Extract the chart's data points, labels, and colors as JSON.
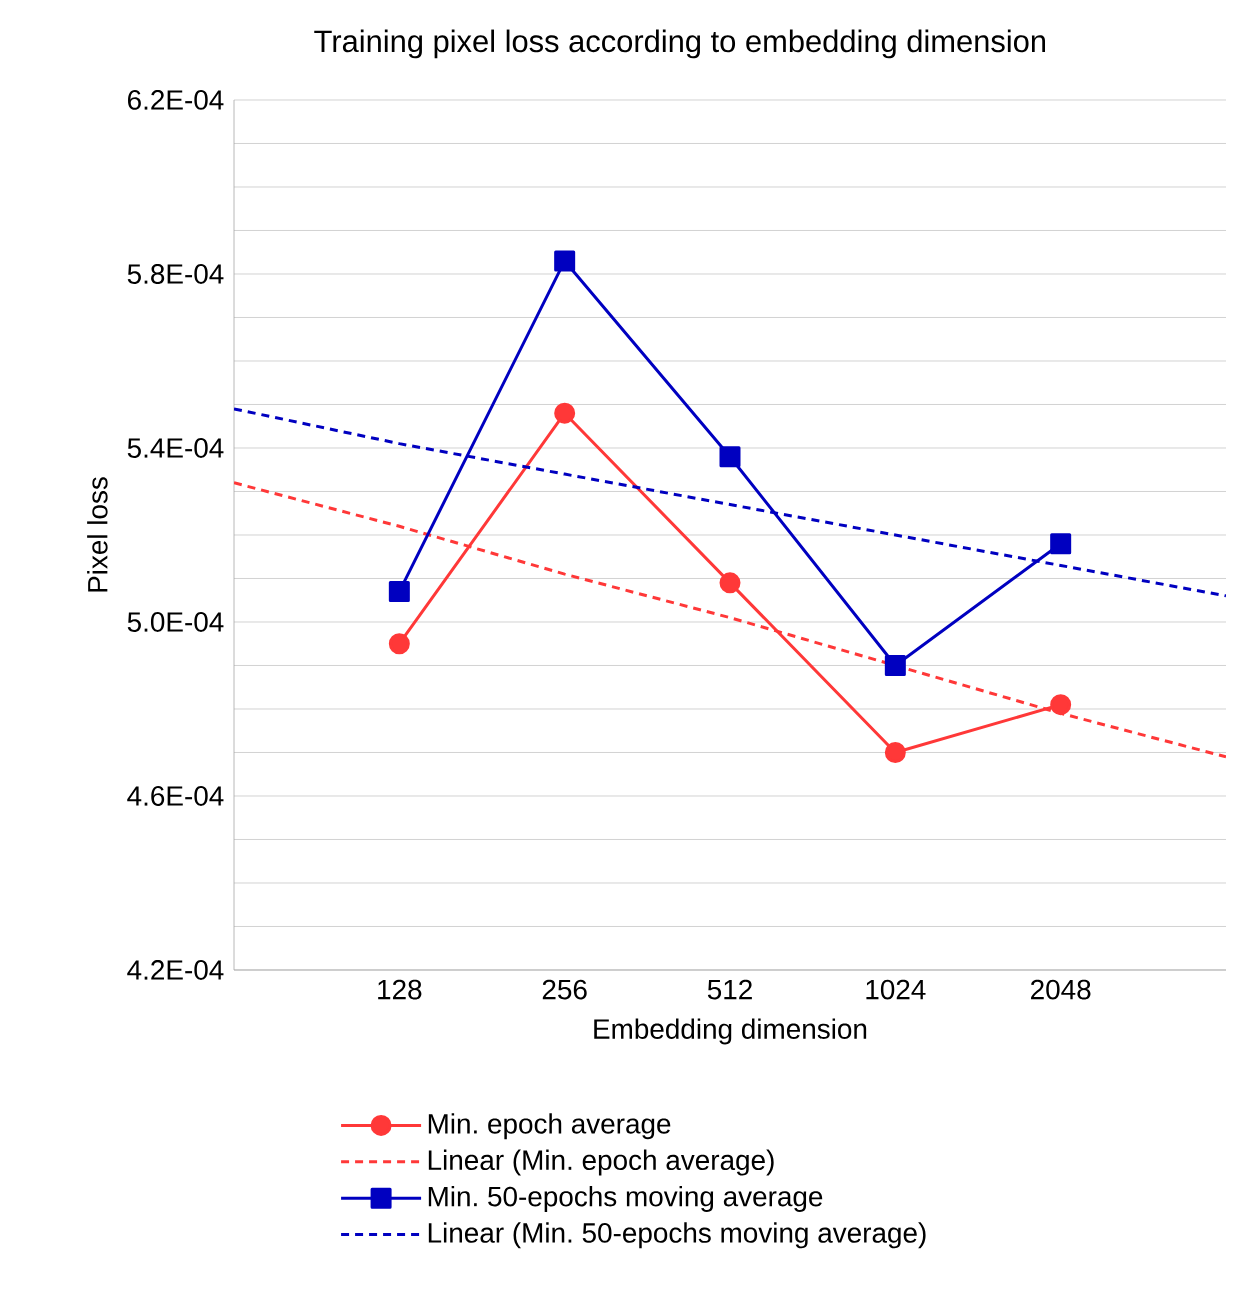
{
  "chart_data": {
    "type": "line",
    "title": "Training pixel loss according to embedding dimension",
    "xlabel": "Embedding dimension",
    "ylabel": "Pixel loss",
    "categories": [
      null,
      "128",
      "256",
      "512",
      "1024",
      "2048",
      null
    ],
    "series": [
      {
        "name": "Min. epoch average",
        "type": "line",
        "color": "#ff3838",
        "marker": "circle",
        "line_style": "solid",
        "values": [
          null,
          0.000495,
          0.000548,
          0.000509,
          0.00047,
          0.000481,
          null
        ]
      },
      {
        "name": "Linear (Min. epoch average)",
        "type": "line",
        "color": "#ff3838",
        "marker": "none",
        "line_style": "dashed",
        "values": [
          0.000532,
          0.000522,
          0.000511,
          0.000501,
          0.00049,
          0.000479,
          0.000469
        ]
      },
      {
        "name": "Min. 50-epochs moving average",
        "type": "line",
        "color": "#0000c0",
        "marker": "square",
        "line_style": "solid",
        "values": [
          null,
          0.000507,
          0.000583,
          0.000538,
          0.00049,
          0.000518,
          null
        ]
      },
      {
        "name": "Linear (Min. 50-epochs moving average)",
        "type": "line",
        "color": "#0000c0",
        "marker": "none",
        "line_style": "dashed",
        "values": [
          0.000549,
          0.000541,
          0.000534,
          0.000527,
          0.00052,
          0.000513,
          0.000506
        ]
      }
    ],
    "ylim": [
      0.00042,
      0.00062
    ],
    "yticks": [
      {
        "value": 0.00042,
        "label": "4.2E-04"
      },
      {
        "value": 0.00043,
        "label": null
      },
      {
        "value": 0.00044,
        "label": null
      },
      {
        "value": 0.00045,
        "label": null
      },
      {
        "value": 0.00046,
        "label": "4.6E-04"
      },
      {
        "value": 0.00047,
        "label": null
      },
      {
        "value": 0.00048,
        "label": null
      },
      {
        "value": 0.00049,
        "label": null
      },
      {
        "value": 0.0005,
        "label": "5.0E-04"
      },
      {
        "value": 0.00051,
        "label": null
      },
      {
        "value": 0.00052,
        "label": null
      },
      {
        "value": 0.00053,
        "label": null
      },
      {
        "value": 0.00054,
        "label": "5.4E-04"
      },
      {
        "value": 0.00055,
        "label": null
      },
      {
        "value": 0.00056,
        "label": null
      },
      {
        "value": 0.00057,
        "label": null
      },
      {
        "value": 0.00058,
        "label": "5.8E-04"
      },
      {
        "value": 0.00059,
        "label": null
      },
      {
        "value": 0.0006,
        "label": null
      },
      {
        "value": 0.00061,
        "label": null
      },
      {
        "value": 0.00062,
        "label": "6.2E-04"
      }
    ],
    "grid": "y",
    "legend": "bottom"
  }
}
